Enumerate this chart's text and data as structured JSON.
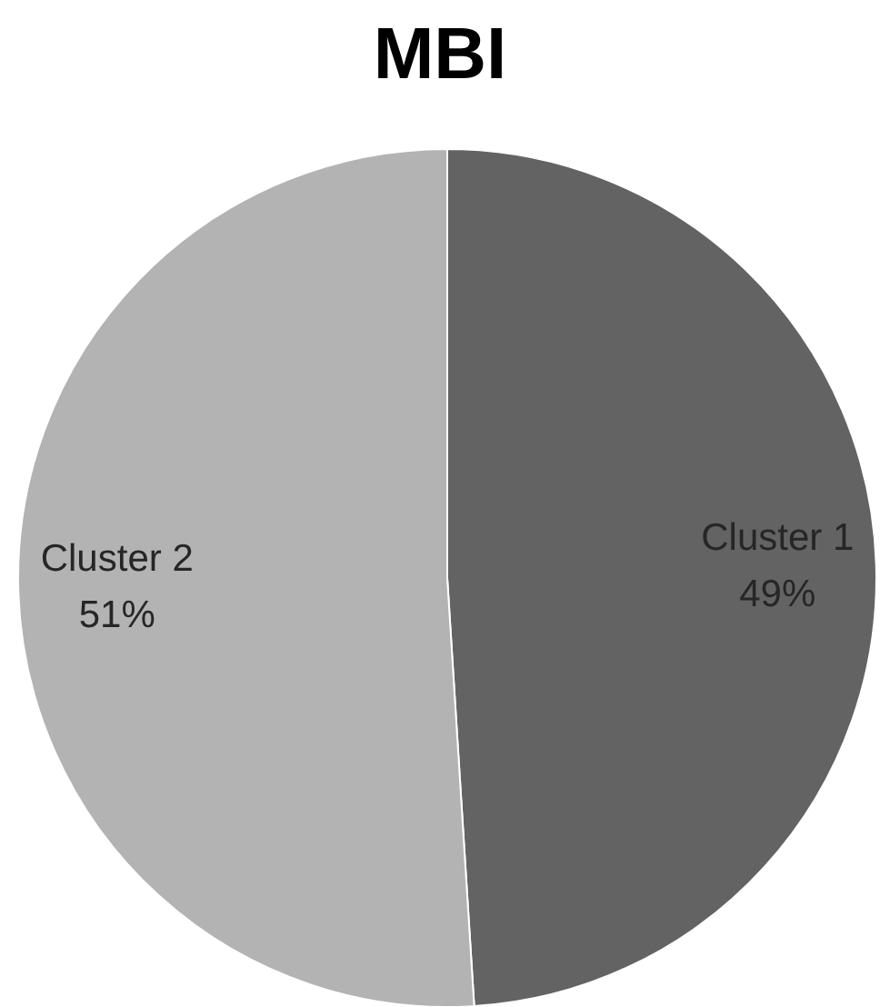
{
  "chart_data": {
    "type": "pie",
    "title": "MBI",
    "categories": [
      "Cluster 1",
      "Cluster 2"
    ],
    "values": [
      49,
      51
    ],
    "colors": [
      "#636363",
      "#b3b3b3"
    ],
    "value_labels": [
      "49%",
      "51%"
    ]
  }
}
